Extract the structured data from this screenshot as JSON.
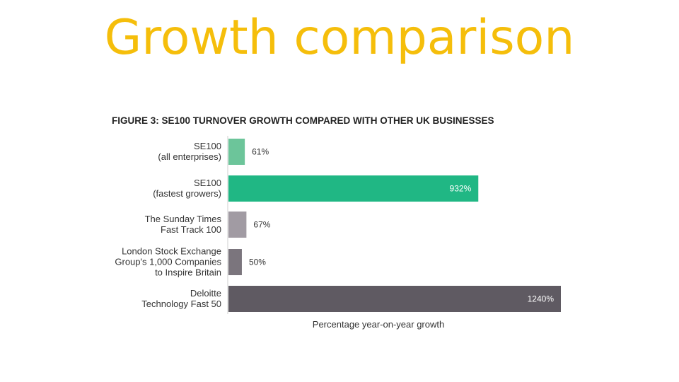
{
  "slide": {
    "title": "Growth comparison",
    "title_color": "#F5BE0B"
  },
  "chart_data": {
    "type": "bar",
    "orientation": "horizontal",
    "title": "FIGURE 3: SE100 TURNOVER GROWTH COMPARED WITH OTHER UK BUSINESSES",
    "xlabel": "Percentage year-on-year growth",
    "ylabel": "",
    "categories": [
      [
        "SE100",
        "(all enterprises)"
      ],
      [
        "SE100",
        "(fastest growers)"
      ],
      [
        "The Sunday Times",
        "Fast Track 100"
      ],
      [
        "London Stock Exchange",
        "Group's 1,000 Companies",
        "to Inspire Britain"
      ],
      [
        "Deloitte",
        "Technology Fast 50"
      ]
    ],
    "values": [
      61,
      932,
      67,
      50,
      1240
    ],
    "value_labels": [
      "61%",
      "932%",
      "67%",
      "50%",
      "1240%"
    ],
    "colors": [
      "#6CC59A",
      "#20B784",
      "#A19BA3",
      "#7B757D",
      "#5F5A62"
    ],
    "label_inside": [
      false,
      true,
      false,
      false,
      true
    ],
    "xlim": [
      0,
      1240
    ],
    "grid": false,
    "legend": "none"
  }
}
